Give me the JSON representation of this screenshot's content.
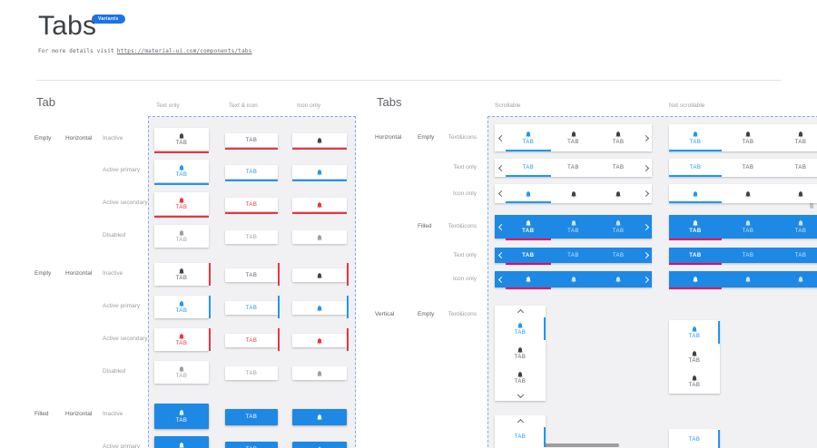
{
  "header": {
    "title": "Tabs",
    "badge": "Variants",
    "subtitle_prefix": "For more details visit",
    "link_text": "https://material-ui.com/components/tabs"
  },
  "tab_text": "TAB",
  "colors": {
    "primary": "#2196f3",
    "secondary": "#ef3340",
    "filled_bg": "#1e88e5",
    "filled_active_indicator": "#f50057",
    "badge_bg": "#1a73e8",
    "inactive_icon": "#424242",
    "inactive_text": "#5f6368",
    "disabled": "#9e9e9e"
  },
  "icons": {
    "tab_icon": "notifications-icon",
    "scroll_left": "chevron-left-icon",
    "scroll_right": "chevron-right-icon",
    "scroll_up": "chevron-up-icon",
    "scroll_down": "chevron-down-icon"
  },
  "left_section": {
    "title": "Tab",
    "column_headers": [
      "Text only",
      "Text & icon",
      "Icon only"
    ],
    "groups": [
      {
        "variant": "Empty",
        "orientation": "Horizontal",
        "rows": [
          {
            "label": "Inactive",
            "state": "inactive"
          },
          {
            "label": "Active primary",
            "state": "active-primary"
          },
          {
            "label": "Active secondary",
            "state": "active-secondary"
          },
          {
            "label": "Disabled",
            "state": "disabled"
          }
        ]
      },
      {
        "variant": "Empty",
        "orientation": "Horizontal",
        "rows": [
          {
            "label": "Inactive",
            "state": "inactive"
          },
          {
            "label": "Active primary",
            "state": "active-primary"
          },
          {
            "label": "Active secondary",
            "state": "active-secondary"
          },
          {
            "label": "Disabled",
            "state": "disabled"
          }
        ]
      },
      {
        "variant": "Filled",
        "orientation": "Horizontal",
        "rows": [
          {
            "label": "Inactive",
            "state": "filled-inactive"
          },
          {
            "label": "Active primary",
            "state": "filled-active"
          }
        ]
      }
    ]
  },
  "right_section": {
    "title": "Tabs",
    "column_headers": [
      "Scrollable",
      "Not scrollable"
    ],
    "groups": [
      {
        "orientation": "Horizontal",
        "variant": "Empty",
        "rows": [
          {
            "label": "Text&icons",
            "content": "text-icon"
          },
          {
            "label": "Text only",
            "content": "text"
          },
          {
            "label": "Icon only",
            "content": "icon"
          }
        ]
      },
      {
        "orientation": "",
        "variant": "Filled",
        "rows": [
          {
            "label": "Text&icons",
            "content": "text-icon"
          },
          {
            "label": "Text only",
            "content": "text"
          },
          {
            "label": "Icon only",
            "content": "icon"
          }
        ]
      },
      {
        "orientation": "Vertical",
        "variant": "Empty",
        "rows": [
          {
            "label": "Text&icons",
            "content": "text-icon"
          },
          {
            "label": "",
            "content": "text"
          }
        ]
      }
    ]
  }
}
